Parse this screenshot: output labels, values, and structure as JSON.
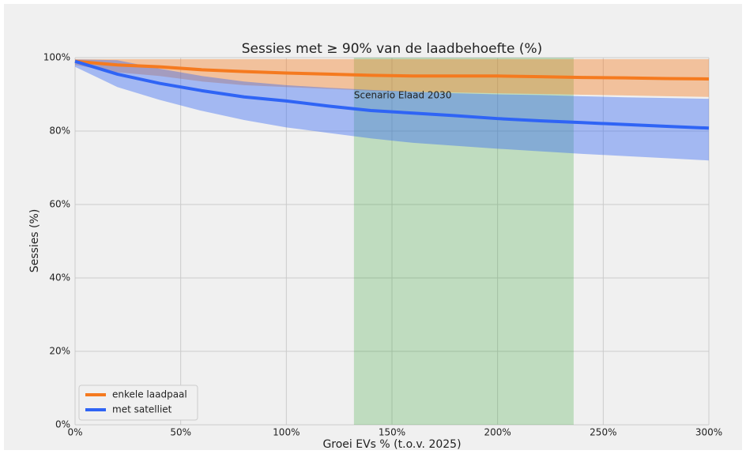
{
  "chart_data": {
    "type": "line",
    "title": "Sessies met ≥ 90% van de laadbehoefte (%)",
    "xlabel": "Groei EVs % (t.o.v. 2025)",
    "ylabel": "Sessies (%)",
    "x": [
      0,
      20,
      40,
      60,
      80,
      100,
      120,
      140,
      160,
      180,
      200,
      220,
      240,
      260,
      280,
      300
    ],
    "series": [
      {
        "name": "enkele laadpaal",
        "color": "#f57a1f",
        "values": [
          99,
          98,
          97.5,
          96.7,
          96.2,
          95.8,
          95.5,
          95.2,
          95,
          95,
          95,
          94.8,
          94.6,
          94.5,
          94.3,
          94.2
        ],
        "upper": [
          99.6,
          99.6,
          99.6,
          99.6,
          99.6,
          99.6,
          99.6,
          99.6,
          99.6,
          99.6,
          99.6,
          99.6,
          99.6,
          99.6,
          99.6,
          99.6
        ],
        "lower": [
          98,
          96,
          95,
          93.5,
          92.5,
          92,
          91.5,
          91,
          90.7,
          90.5,
          90.3,
          90.1,
          89.9,
          89.7,
          89.5,
          89.3
        ]
      },
      {
        "name": "met satelliet",
        "color": "#2f64f5",
        "values": [
          99,
          95.5,
          93,
          91,
          89.3,
          88.2,
          86.8,
          85.6,
          84.9,
          84.2,
          83.4,
          82.8,
          82.3,
          81.8,
          81.3,
          80.8
        ],
        "upper": [
          99.5,
          99.3,
          97,
          95,
          93.5,
          92.5,
          91.8,
          91.2,
          90.7,
          90.3,
          90,
          89.8,
          89.5,
          89.2,
          89,
          88.8
        ],
        "lower": [
          97.5,
          92,
          88.5,
          85.5,
          83,
          81,
          79.5,
          78,
          76.8,
          76,
          75.2,
          74.5,
          73.8,
          73.2,
          72.6,
          72
        ]
      }
    ],
    "span": {
      "x0": 132,
      "x1": 236,
      "label": "Scenario Elaad 2030",
      "color": "#2ca02c"
    },
    "xlim": [
      0,
      300
    ],
    "xticks": [
      {
        "value": 0,
        "label": "0%"
      },
      {
        "value": 50,
        "label": "50%"
      },
      {
        "value": 100,
        "label": "100%"
      },
      {
        "value": 150,
        "label": "150%"
      },
      {
        "value": 200,
        "label": "200%"
      },
      {
        "value": 250,
        "label": "250%"
      },
      {
        "value": 300,
        "label": "300%"
      }
    ],
    "ylim": [
      0,
      100
    ],
    "yticks": [
      {
        "value": 0,
        "label": "0%"
      },
      {
        "value": 20,
        "label": "20%"
      },
      {
        "value": 40,
        "label": "40%"
      },
      {
        "value": 60,
        "label": "60%"
      },
      {
        "value": 80,
        "label": "80%"
      },
      {
        "value": 100,
        "label": "100%"
      }
    ],
    "grid": true,
    "legend": "lower left"
  }
}
